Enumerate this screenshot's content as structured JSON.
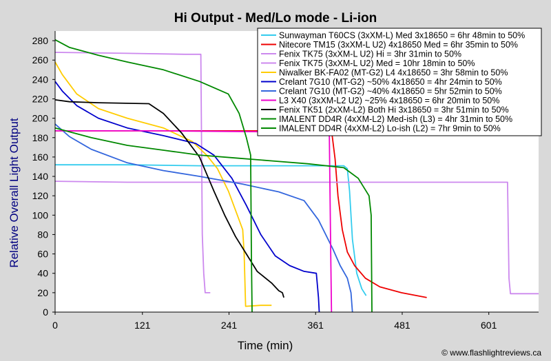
{
  "chart_data": {
    "type": "line",
    "title": "Hi Output - Med/Lo mode - Li-ion",
    "xlabel": "Time (min)",
    "ylabel": "Relative Overall Light Output",
    "xlim": [
      0,
      670
    ],
    "ylim": [
      0,
      290
    ],
    "xticks": [
      0,
      121,
      241,
      361,
      481,
      601
    ],
    "yticks": [
      0,
      20,
      40,
      60,
      80,
      100,
      120,
      140,
      160,
      180,
      200,
      220,
      240,
      260,
      280
    ],
    "grid": false,
    "legend_position": "top-right",
    "credit": "© www.flashlightreviews.ca",
    "series": [
      {
        "name": "Sunwayman T60CS (3xXM-L) Med 3x18650 = 6hr 48min to 50%",
        "color": "#33ccee",
        "points": [
          [
            0,
            152
          ],
          [
            100,
            152
          ],
          [
            200,
            151
          ],
          [
            300,
            151
          ],
          [
            380,
            151
          ],
          [
            400,
            151
          ],
          [
            405,
            148
          ],
          [
            408,
            125
          ],
          [
            412,
            75
          ],
          [
            418,
            40
          ],
          [
            425,
            24
          ],
          [
            431,
            17
          ]
        ]
      },
      {
        "name": "Nitecore TM15 (3xXM-L U2) 4x18650 Med = 6hr 35min to 50%",
        "color": "#ee0000",
        "points": [
          [
            0,
            187
          ],
          [
            150,
            187
          ],
          [
            300,
            187
          ],
          [
            380,
            187
          ],
          [
            384,
            182
          ],
          [
            388,
            158
          ],
          [
            392,
            120
          ],
          [
            398,
            85
          ],
          [
            405,
            62
          ],
          [
            415,
            48
          ],
          [
            430,
            35
          ],
          [
            450,
            26
          ],
          [
            480,
            20
          ],
          [
            515,
            15
          ]
        ]
      },
      {
        "name": "Fenix TK75 (3xXM-L U2) Hi = 3hr 31min to 50%",
        "color": "#cc88ee",
        "points": [
          [
            0,
            268
          ],
          [
            100,
            267
          ],
          [
            180,
            266
          ],
          [
            202,
            266
          ],
          [
            204,
            80
          ],
          [
            206,
            40
          ],
          [
            208,
            20
          ],
          [
            215,
            20
          ]
        ]
      },
      {
        "name": "Fenix TK75 (3xXM-L U2) Med = 10hr 18min to 50%",
        "color": "#cc88ee",
        "points": [
          [
            0,
            135
          ],
          [
            100,
            134
          ],
          [
            300,
            134
          ],
          [
            450,
            134
          ],
          [
            600,
            134
          ],
          [
            627,
            134
          ],
          [
            629,
            35
          ],
          [
            631,
            19
          ],
          [
            670,
            19
          ]
        ]
      },
      {
        "name": "Niwalker BK-FA02 (MT-G2) L4 4x18650 = 3hr 58min to 50%",
        "color": "#ffcc00",
        "points": [
          [
            0,
            258
          ],
          [
            10,
            245
          ],
          [
            30,
            225
          ],
          [
            60,
            210
          ],
          [
            100,
            200
          ],
          [
            150,
            190
          ],
          [
            190,
            176
          ],
          [
            210,
            162
          ],
          [
            225,
            148
          ],
          [
            240,
            125
          ],
          [
            255,
            95
          ],
          [
            260,
            85
          ],
          [
            262,
            60
          ],
          [
            264,
            6
          ],
          [
            285,
            7
          ],
          [
            300,
            7
          ]
        ]
      },
      {
        "name": "Crelant 7G10 (MT-G2) ~50% 4x18650 = 4hr 24min to 50%",
        "color": "#0000cc",
        "points": [
          [
            0,
            238
          ],
          [
            10,
            228
          ],
          [
            30,
            213
          ],
          [
            60,
            200
          ],
          [
            100,
            190
          ],
          [
            150,
            182
          ],
          [
            195,
            174
          ],
          [
            220,
            162
          ],
          [
            245,
            138
          ],
          [
            265,
            110
          ],
          [
            285,
            80
          ],
          [
            305,
            58
          ],
          [
            325,
            48
          ],
          [
            345,
            42
          ],
          [
            362,
            40
          ],
          [
            365,
            15
          ],
          [
            366,
            0
          ]
        ]
      },
      {
        "name": "Crelant 7G10 (MT-G2) ~40% 4x18650 = 5hr 52min to 50%",
        "color": "#3366dd",
        "points": [
          [
            0,
            194
          ],
          [
            20,
            181
          ],
          [
            50,
            168
          ],
          [
            100,
            154
          ],
          [
            150,
            146
          ],
          [
            200,
            140
          ],
          [
            260,
            132
          ],
          [
            310,
            124
          ],
          [
            345,
            115
          ],
          [
            365,
            95
          ],
          [
            385,
            65
          ],
          [
            395,
            48
          ],
          [
            405,
            35
          ],
          [
            410,
            20
          ],
          [
            412,
            0
          ]
        ]
      },
      {
        "name": "L3 X40 (3xXM-L2 U2) ~25% 4x18650 = 6hr 20min to 50%",
        "color": "#ee00cc",
        "points": [
          [
            0,
            187
          ],
          [
            150,
            187
          ],
          [
            300,
            186
          ],
          [
            380,
            186
          ],
          [
            382,
            60
          ],
          [
            383,
            0
          ]
        ]
      },
      {
        "name": "Fenix TK51 (2xXM-L2) Both Hi 3x18650 = 3hr 51min to 50%",
        "color": "#000000",
        "points": [
          [
            0,
            219
          ],
          [
            20,
            217
          ],
          [
            60,
            216
          ],
          [
            130,
            215
          ],
          [
            150,
            205
          ],
          [
            175,
            185
          ],
          [
            200,
            160
          ],
          [
            220,
            125
          ],
          [
            235,
            100
          ],
          [
            250,
            78
          ],
          [
            265,
            60
          ],
          [
            280,
            42
          ],
          [
            300,
            30
          ],
          [
            310,
            22
          ],
          [
            315,
            20
          ],
          [
            317,
            15
          ]
        ]
      },
      {
        "name": "IMALENT DD4R (4xXM-L2) Med-ish (L3) = 4hr 31min to 50%",
        "color": "#008800",
        "points": [
          [
            0,
            281
          ],
          [
            20,
            273
          ],
          [
            60,
            265
          ],
          [
            100,
            258
          ],
          [
            150,
            250
          ],
          [
            200,
            238
          ],
          [
            240,
            225
          ],
          [
            255,
            205
          ],
          [
            265,
            180
          ],
          [
            271,
            162
          ],
          [
            272,
            60
          ],
          [
            273,
            0
          ]
        ]
      },
      {
        "name": "IMALENT DD4R (4xXM-L2) Lo-ish (L2) = 7hr 9min to 50%",
        "color": "#008800",
        "points": [
          [
            0,
            190
          ],
          [
            50,
            180
          ],
          [
            100,
            172
          ],
          [
            150,
            167
          ],
          [
            200,
            162
          ],
          [
            250,
            159
          ],
          [
            300,
            156
          ],
          [
            350,
            153
          ],
          [
            400,
            149
          ],
          [
            420,
            138
          ],
          [
            435,
            120
          ],
          [
            438,
            100
          ],
          [
            439,
            0
          ]
        ]
      }
    ]
  }
}
